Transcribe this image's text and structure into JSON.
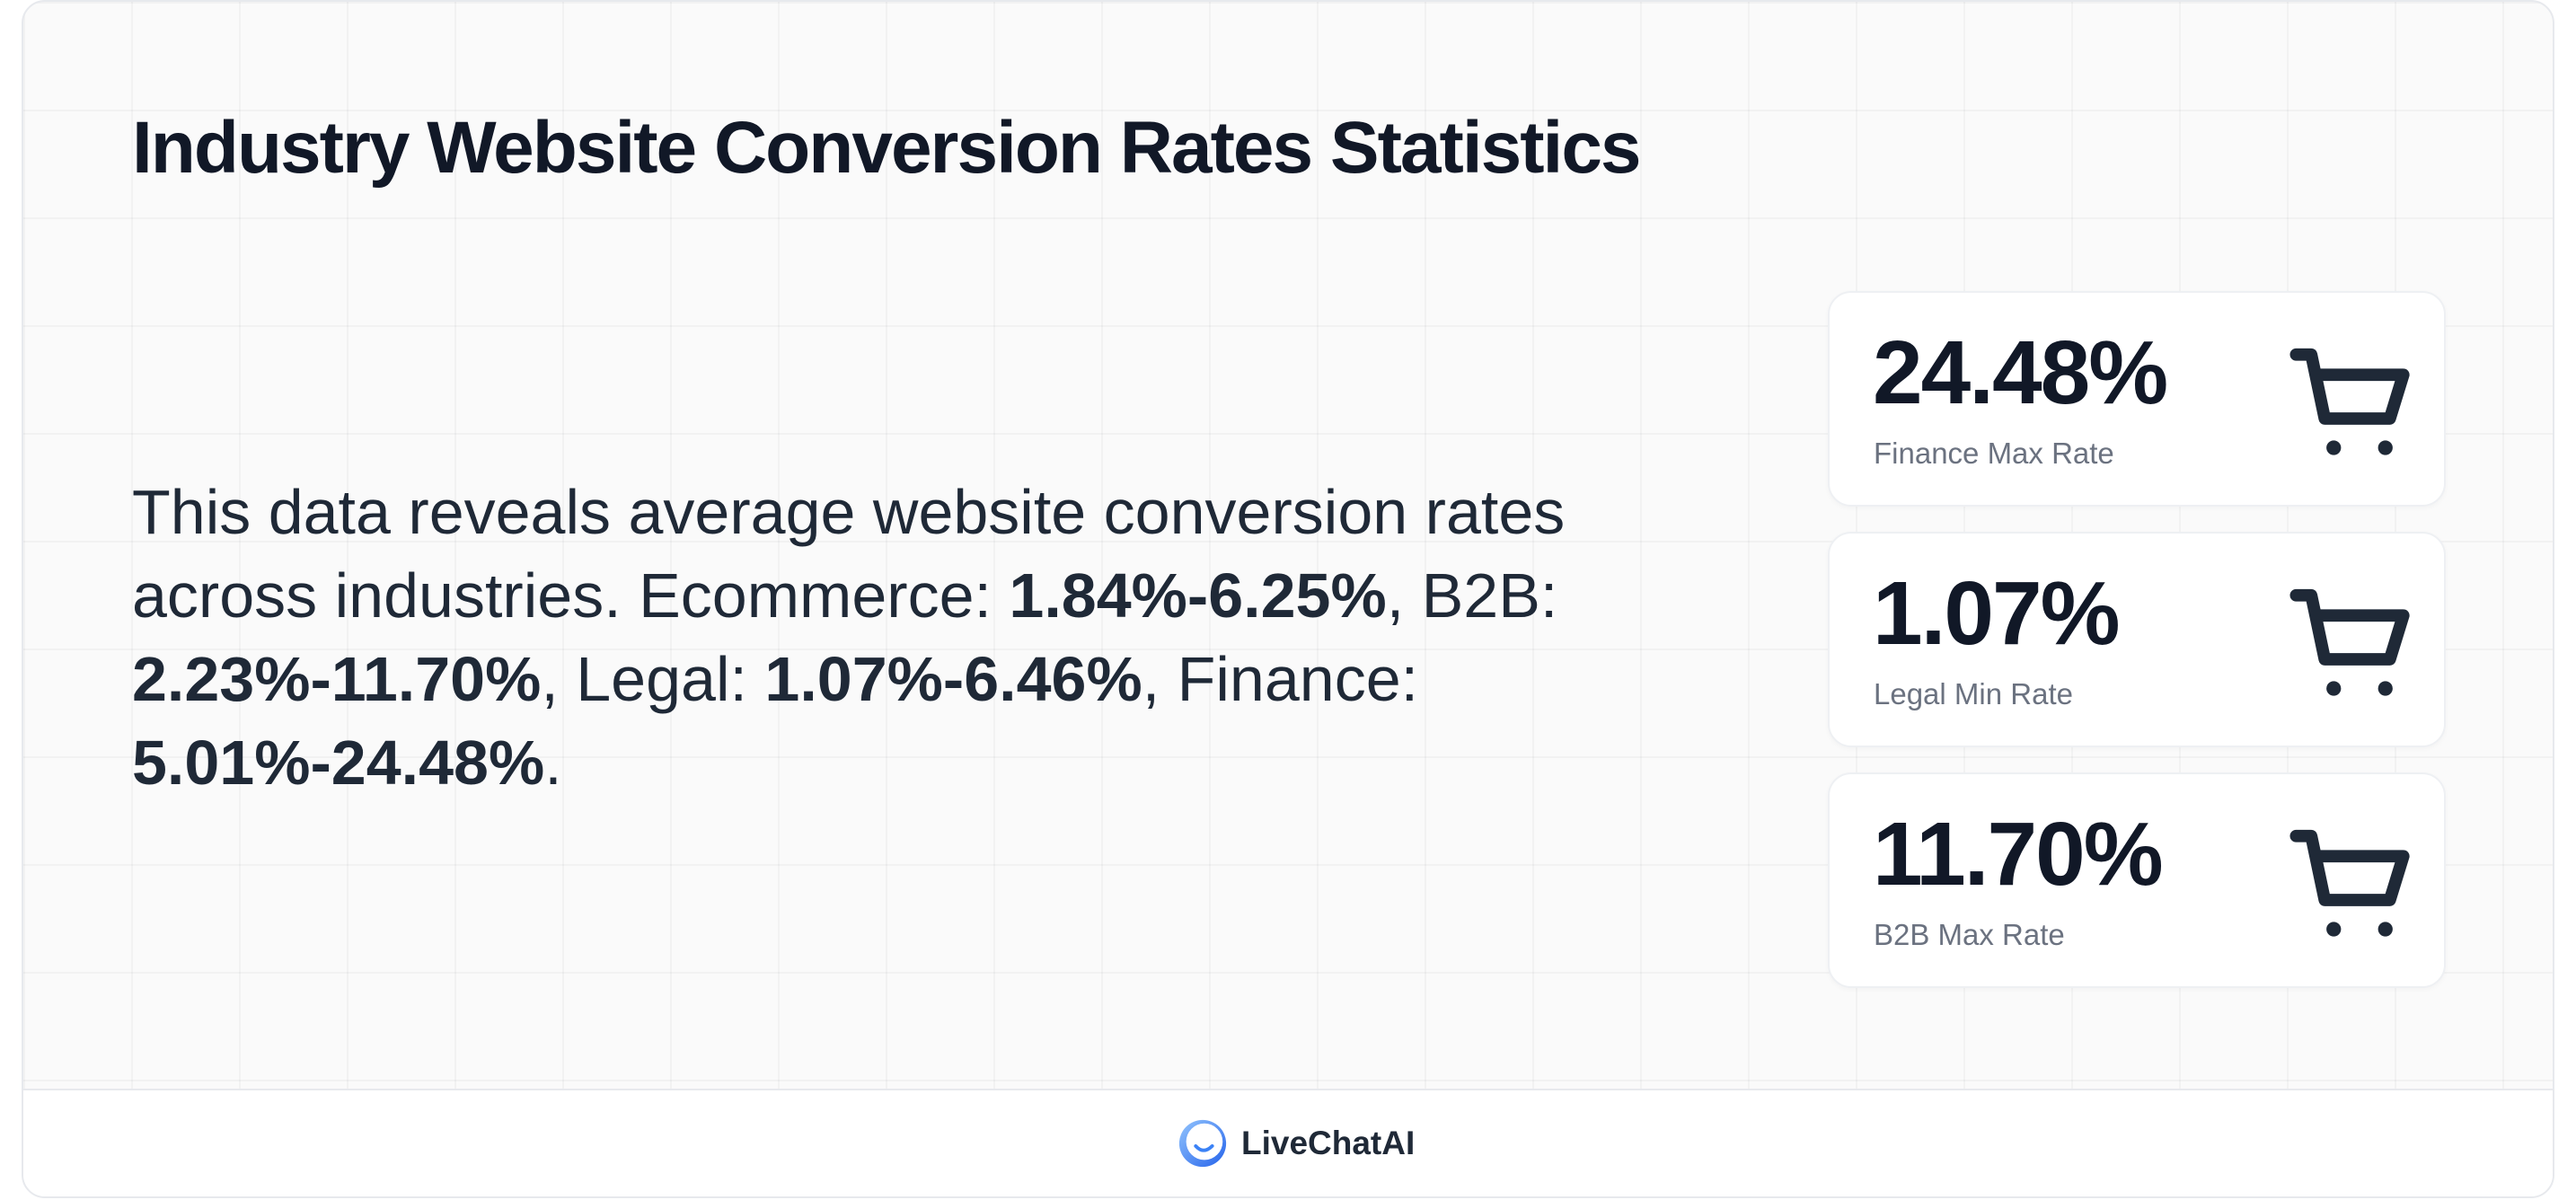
{
  "title": "Industry Website Conversion Rates Statistics",
  "description": {
    "part1": "This data reveals average website conversion rates across industries. Ecommerce: ",
    "ecommerce_range": "1.84%-6.25%",
    "part2": ", B2B: ",
    "b2b_range": "2.23%-11.70%",
    "part3": ", Legal: ",
    "legal_range": "1.07%-6.46%",
    "part4": ", Finance: ",
    "finance_range": "5.01%-24.48%",
    "part5": "."
  },
  "cards": [
    {
      "value": "24.48%",
      "label": "Finance Max Rate",
      "icon": "shopping-cart-icon"
    },
    {
      "value": "1.07%",
      "label": "Legal Min Rate",
      "icon": "shopping-cart-icon"
    },
    {
      "value": "11.70%",
      "label": "B2B Max Rate",
      "icon": "shopping-cart-icon"
    }
  ],
  "footer": {
    "brand": "LiveChatAI",
    "logo_icon": "smile-chat-logo-icon"
  },
  "colors": {
    "text_primary": "#111827",
    "text_muted": "#6b7280",
    "logo_blue": "#3b82f6",
    "background": "#fafafa"
  }
}
